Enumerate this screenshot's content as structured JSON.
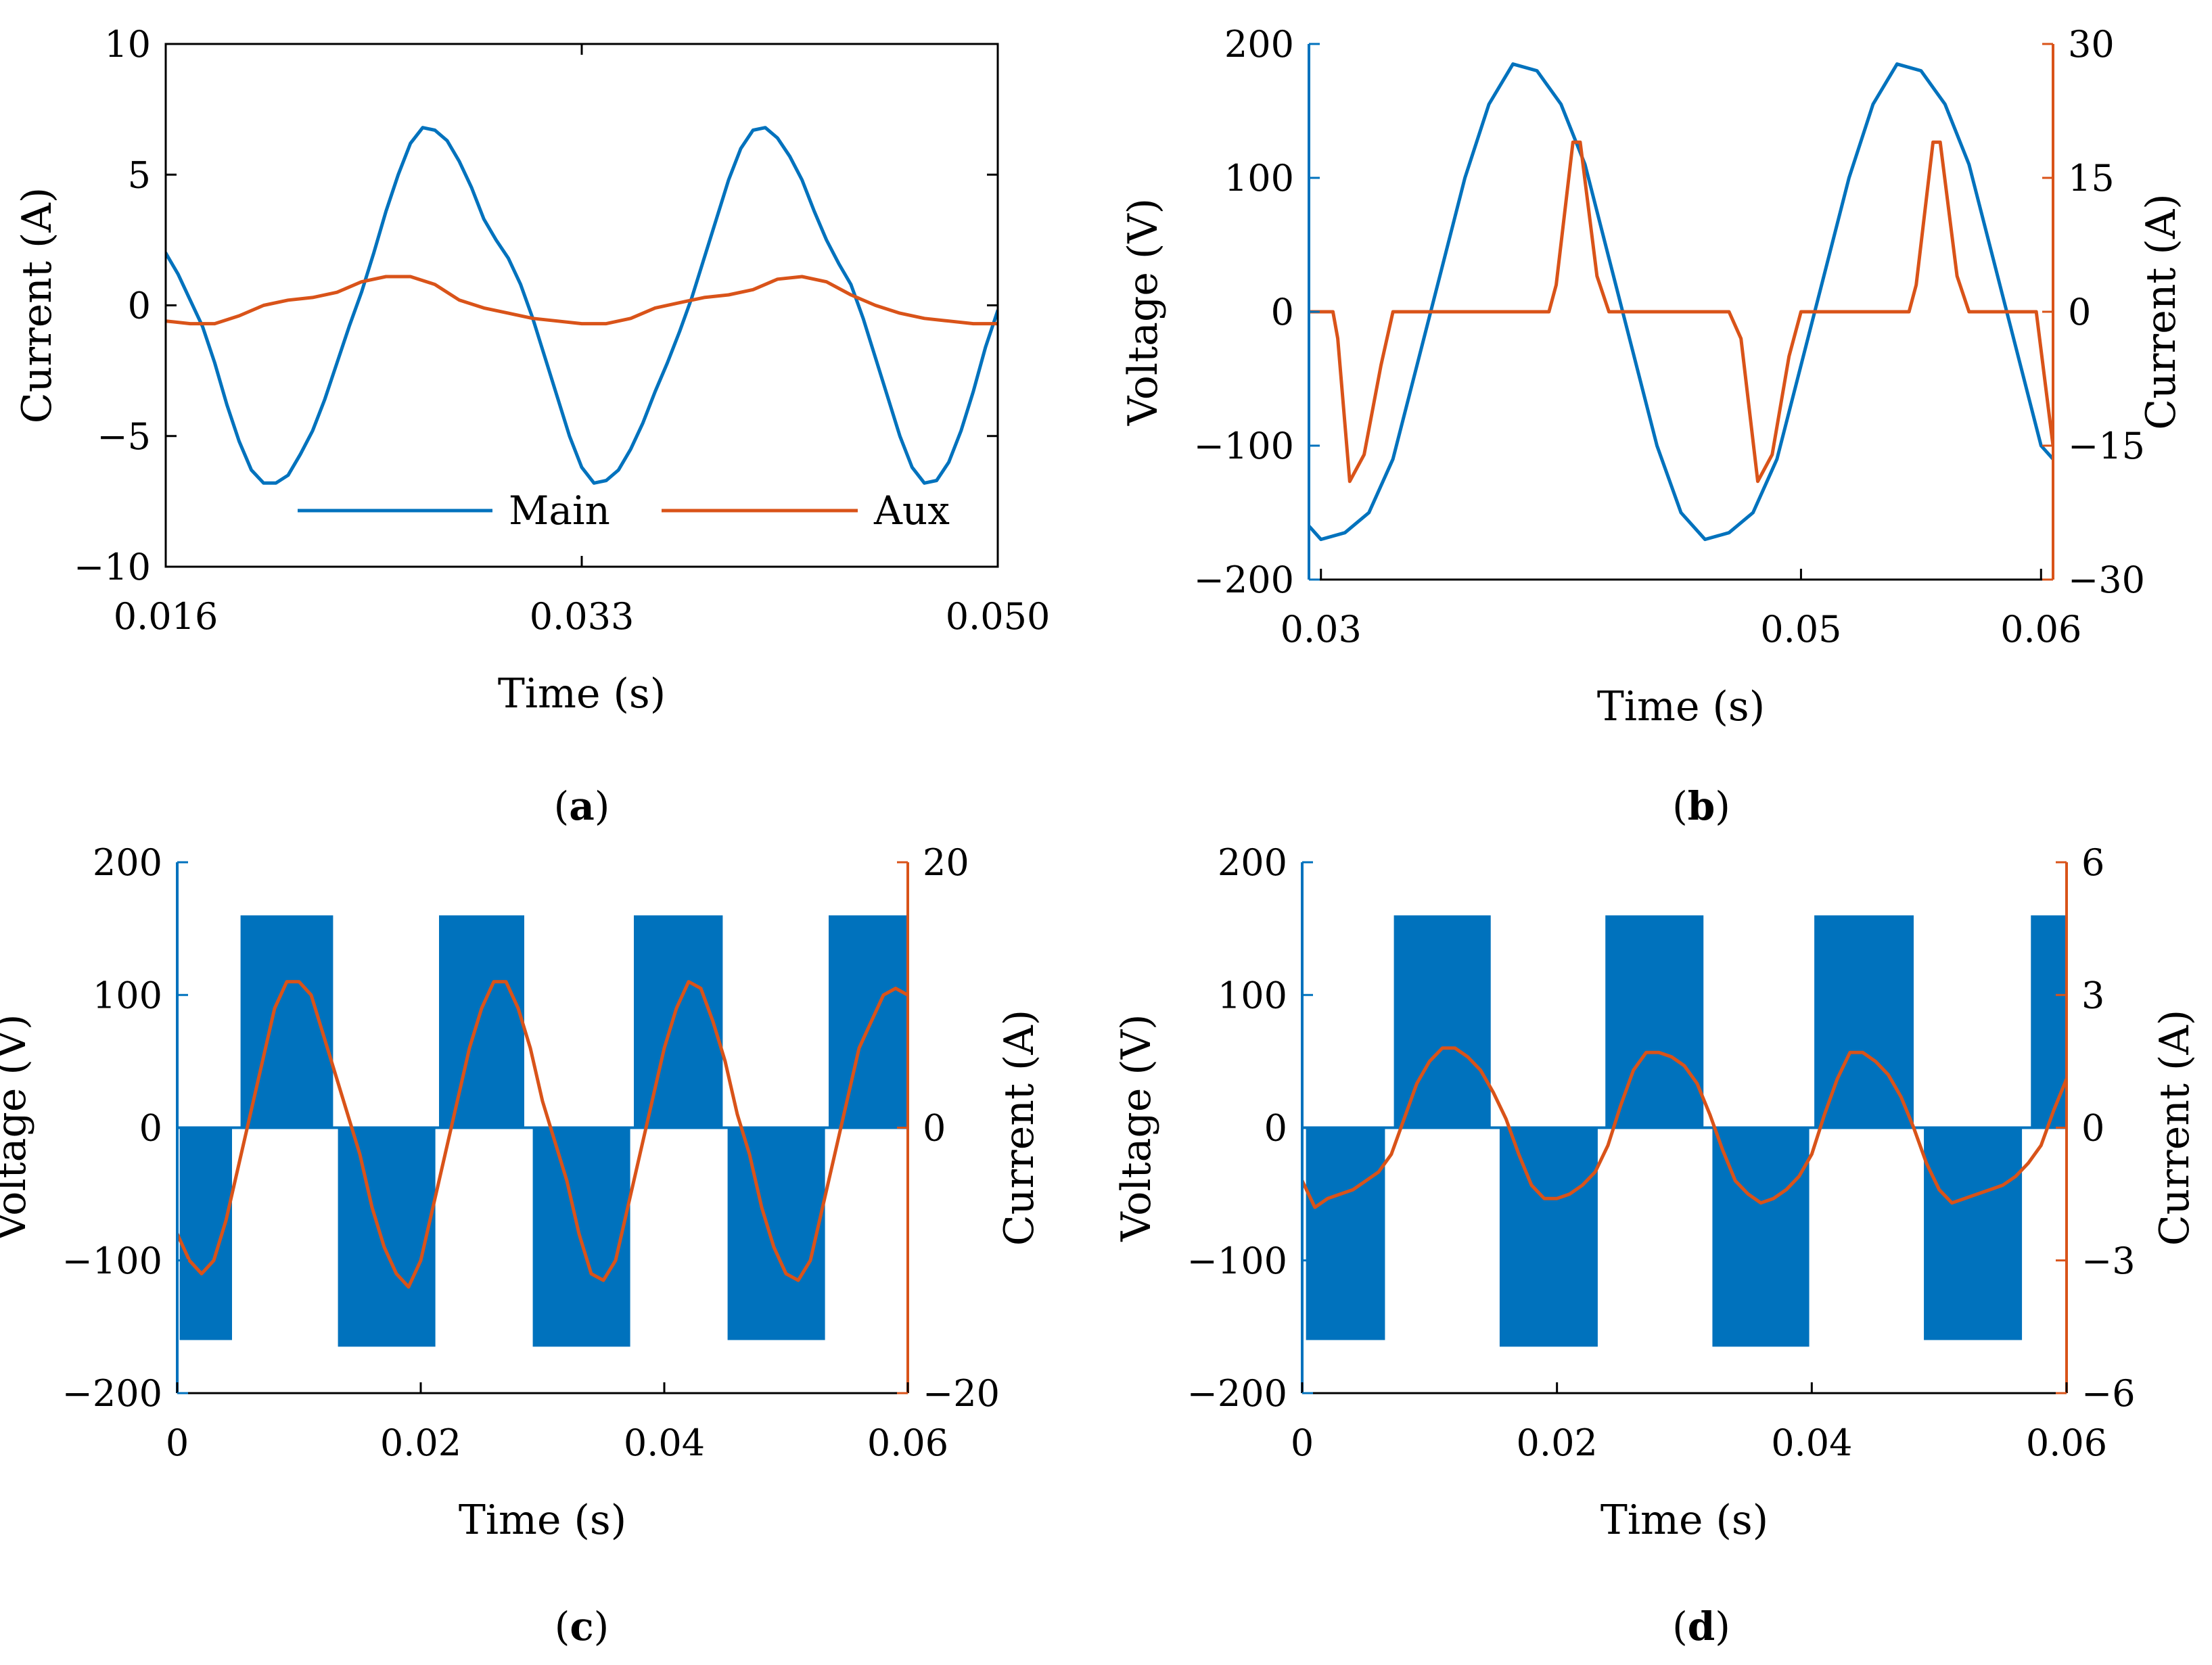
{
  "colors": {
    "blue": "#0072bd",
    "orange": "#d95319"
  },
  "chart_data": [
    {
      "panel": "a",
      "caption_letter": "a",
      "type": "line",
      "xlabel": "Time (s)",
      "ylabel": "Current (A)",
      "xlim": [
        0.016,
        0.05
      ],
      "ylim": [
        -10,
        10
      ],
      "xticks": [
        0.016,
        0.033,
        0.05
      ],
      "xtick_labels": [
        "0.016",
        "0.033",
        "0.050"
      ],
      "yticks": [
        -10,
        -5,
        0,
        5,
        10
      ],
      "ytick_labels": [
        "−10",
        "−5",
        "0",
        "5",
        "10"
      ],
      "legend_position": "bottom-right",
      "series": [
        {
          "name": "Main",
          "axis": "left",
          "x": [
            0.016,
            0.0165,
            0.017,
            0.0175,
            0.018,
            0.0185,
            0.019,
            0.0195,
            0.02,
            0.0205,
            0.021,
            0.0215,
            0.022,
            0.0225,
            0.023,
            0.0235,
            0.024,
            0.0245,
            0.025,
            0.0255,
            0.026,
            0.0265,
            0.027,
            0.0275,
            0.028,
            0.0285,
            0.029,
            0.0295,
            0.03,
            0.0305,
            0.031,
            0.0315,
            0.032,
            0.0325,
            0.033,
            0.0335,
            0.034,
            0.0345,
            0.035,
            0.0355,
            0.036,
            0.0365,
            0.037,
            0.0375,
            0.038,
            0.0385,
            0.039,
            0.0395,
            0.04,
            0.0405,
            0.041,
            0.0415,
            0.042,
            0.0425,
            0.043,
            0.0435,
            0.044,
            0.0445,
            0.045,
            0.0455,
            0.046,
            0.0465,
            0.047,
            0.0475,
            0.048,
            0.0485,
            0.049,
            0.0495,
            0.05
          ],
          "values": [
            2.0,
            1.2,
            0.2,
            -0.8,
            -2.2,
            -3.8,
            -5.2,
            -6.3,
            -6.8,
            -6.8,
            -6.5,
            -5.7,
            -4.8,
            -3.6,
            -2.2,
            -0.8,
            0.5,
            2.0,
            3.6,
            5.0,
            6.2,
            6.8,
            6.7,
            6.3,
            5.5,
            4.5,
            3.3,
            2.5,
            1.8,
            0.8,
            -0.5,
            -2.0,
            -3.5,
            -5.0,
            -6.2,
            -6.8,
            -6.7,
            -6.3,
            -5.5,
            -4.5,
            -3.3,
            -2.2,
            -1.0,
            0.3,
            1.8,
            3.3,
            4.8,
            6.0,
            6.7,
            6.8,
            6.4,
            5.7,
            4.8,
            3.6,
            2.5,
            1.6,
            0.8,
            -0.5,
            -2.0,
            -3.5,
            -5.0,
            -6.2,
            -6.8,
            -6.7,
            -6.0,
            -4.8,
            -3.3,
            -1.6,
            -0.2
          ]
        },
        {
          "name": "Aux",
          "axis": "left",
          "x": [
            0.016,
            0.017,
            0.018,
            0.019,
            0.02,
            0.021,
            0.022,
            0.023,
            0.024,
            0.025,
            0.026,
            0.027,
            0.028,
            0.029,
            0.03,
            0.031,
            0.032,
            0.033,
            0.034,
            0.035,
            0.036,
            0.037,
            0.038,
            0.039,
            0.04,
            0.041,
            0.042,
            0.043,
            0.044,
            0.045,
            0.046,
            0.047,
            0.048,
            0.049,
            0.05
          ],
          "values": [
            -0.6,
            -0.7,
            -0.7,
            -0.4,
            0.0,
            0.2,
            0.3,
            0.5,
            0.9,
            1.1,
            1.1,
            0.8,
            0.2,
            -0.1,
            -0.3,
            -0.5,
            -0.6,
            -0.7,
            -0.7,
            -0.5,
            -0.1,
            0.1,
            0.3,
            0.4,
            0.6,
            1.0,
            1.1,
            0.9,
            0.4,
            0.0,
            -0.3,
            -0.5,
            -0.6,
            -0.7,
            -0.7
          ]
        }
      ]
    },
    {
      "panel": "b",
      "caption_letter": "b",
      "type": "line",
      "xlabel": "Time (s)",
      "ylabel": "Voltage (V)",
      "y2label": "Current (A)",
      "xlim": [
        0.0295,
        0.0605
      ],
      "ylim": [
        -200,
        200
      ],
      "y2lim": [
        -30,
        30
      ],
      "xticks": [
        0.03,
        0.05,
        0.06
      ],
      "xtick_labels": [
        "0.03",
        "0.05",
        "0.06"
      ],
      "yticks": [
        -200,
        -100,
        0,
        100,
        200
      ],
      "ytick_labels": [
        "−200",
        "−100",
        "0",
        "100",
        "200"
      ],
      "y2ticks": [
        -30,
        -15,
        0,
        15,
        30
      ],
      "y2tick_labels": [
        "−30",
        "−15",
        "0",
        "15",
        "30"
      ],
      "series": [
        {
          "axis": "left",
          "x": [
            0.0295,
            0.03,
            0.031,
            0.032,
            0.033,
            0.034,
            0.035,
            0.036,
            0.037,
            0.038,
            0.039,
            0.04,
            0.041,
            0.042,
            0.043,
            0.044,
            0.045,
            0.046,
            0.047,
            0.048,
            0.049,
            0.05,
            0.051,
            0.052,
            0.053,
            0.054,
            0.055,
            0.056,
            0.057,
            0.058,
            0.059,
            0.06,
            0.0605
          ],
          "values": [
            -160,
            -170,
            -165,
            -150,
            -110,
            -40,
            30,
            100,
            155,
            185,
            180,
            155,
            110,
            40,
            -30,
            -100,
            -150,
            -170,
            -165,
            -150,
            -110,
            -40,
            30,
            100,
            155,
            185,
            180,
            155,
            110,
            40,
            -30,
            -100,
            -110
          ]
        },
        {
          "axis": "right",
          "x": [
            0.0295,
            0.0305,
            0.0307,
            0.0312,
            0.0318,
            0.0325,
            0.033,
            0.0335,
            0.034,
            0.036,
            0.038,
            0.0395,
            0.0398,
            0.0405,
            0.0408,
            0.0415,
            0.042,
            0.043,
            0.046,
            0.047,
            0.0475,
            0.0482,
            0.0488,
            0.0495,
            0.05,
            0.053,
            0.0545,
            0.0548,
            0.0555,
            0.0558,
            0.0565,
            0.057,
            0.058,
            0.0598,
            0.0605
          ],
          "values": [
            0,
            0,
            -3,
            -19,
            -16,
            -6,
            0,
            0,
            0,
            0,
            0,
            0,
            3,
            19,
            19,
            4,
            0,
            0,
            0,
            0,
            -3,
            -19,
            -16,
            -5,
            0,
            0,
            0,
            3,
            19,
            19,
            4,
            0,
            0,
            0,
            -15
          ]
        }
      ]
    },
    {
      "panel": "c",
      "caption_letter": "c",
      "type": "line",
      "xlabel": "Time (s)",
      "ylabel": "Voltage (V)",
      "y2label": "Current (A)",
      "xlim": [
        0,
        0.06
      ],
      "ylim": [
        -200,
        200
      ],
      "y2lim": [
        -20,
        20
      ],
      "xticks": [
        0,
        0.02,
        0.04,
        0.06
      ],
      "xtick_labels": [
        "0",
        "0.02",
        "0.04",
        "0.06"
      ],
      "yticks": [
        -200,
        -100,
        0,
        100,
        200
      ],
      "ytick_labels": [
        "−200",
        "−100",
        "0",
        "100",
        "200"
      ],
      "y2ticks": [
        -20,
        0,
        20
      ],
      "y2tick_labels": [
        "−20",
        "0",
        "20"
      ],
      "pwm_blocks": [
        {
          "x0": 0.0002,
          "x1": 0.0045,
          "level": -160
        },
        {
          "x0": 0.0052,
          "x1": 0.0128,
          "level": 160
        },
        {
          "x0": 0.0132,
          "x1": 0.0212,
          "level": -165
        },
        {
          "x0": 0.0215,
          "x1": 0.0285,
          "level": 160
        },
        {
          "x0": 0.0292,
          "x1": 0.0372,
          "level": -165
        },
        {
          "x0": 0.0375,
          "x1": 0.0448,
          "level": 160
        },
        {
          "x0": 0.0452,
          "x1": 0.0532,
          "level": -160
        },
        {
          "x0": 0.0535,
          "x1": 0.06,
          "level": 160
        }
      ],
      "series": [
        {
          "axis": "right",
          "x": [
            0,
            0.001,
            0.002,
            0.003,
            0.004,
            0.005,
            0.006,
            0.007,
            0.008,
            0.009,
            0.01,
            0.011,
            0.012,
            0.013,
            0.014,
            0.015,
            0.016,
            0.017,
            0.018,
            0.019,
            0.02,
            0.021,
            0.022,
            0.023,
            0.024,
            0.025,
            0.026,
            0.027,
            0.028,
            0.029,
            0.03,
            0.031,
            0.032,
            0.033,
            0.034,
            0.035,
            0.036,
            0.037,
            0.038,
            0.039,
            0.04,
            0.041,
            0.042,
            0.043,
            0.044,
            0.045,
            0.046,
            0.047,
            0.048,
            0.049,
            0.05,
            0.051,
            0.052,
            0.053,
            0.054,
            0.055,
            0.056,
            0.057,
            0.058,
            0.059,
            0.06
          ],
          "values": [
            -8,
            -10,
            -11,
            -10,
            -7,
            -3,
            1,
            5,
            9,
            11,
            11,
            10,
            7,
            4,
            1,
            -2,
            -6,
            -9,
            -11,
            -12,
            -10,
            -6,
            -2,
            2,
            6,
            9,
            11,
            11,
            9,
            6,
            2,
            -1,
            -4,
            -8,
            -11,
            -11.5,
            -10,
            -6,
            -2,
            2,
            6,
            9,
            11,
            10.5,
            8,
            5,
            1,
            -2,
            -6,
            -9,
            -11,
            -11.5,
            -10,
            -6,
            -2,
            2,
            6,
            8,
            10,
            10.5,
            10
          ]
        }
      ]
    },
    {
      "panel": "d",
      "caption_letter": "d",
      "type": "line",
      "xlabel": "Time (s)",
      "ylabel": "Voltage (V)",
      "y2label": "Current (A)",
      "xlim": [
        0,
        0.06
      ],
      "ylim": [
        -200,
        200
      ],
      "y2lim": [
        -6,
        6
      ],
      "xticks": [
        0,
        0.02,
        0.04,
        0.06
      ],
      "xtick_labels": [
        "0",
        "0.02",
        "0.04",
        "0.06"
      ],
      "yticks": [
        -200,
        -100,
        0,
        100,
        200
      ],
      "ytick_labels": [
        "−200",
        "−100",
        "0",
        "100",
        "200"
      ],
      "y2ticks": [
        -6,
        -3,
        0,
        3,
        6
      ],
      "y2tick_labels": [
        "−6",
        "−3",
        "0",
        "3",
        "6"
      ],
      "pwm_blocks": [
        {
          "x0": 0.0003,
          "x1": 0.0065,
          "level": -160
        },
        {
          "x0": 0.0072,
          "x1": 0.0148,
          "level": 160
        },
        {
          "x0": 0.0155,
          "x1": 0.0232,
          "level": -165
        },
        {
          "x0": 0.0238,
          "x1": 0.0315,
          "level": 160
        },
        {
          "x0": 0.0322,
          "x1": 0.0398,
          "level": -165
        },
        {
          "x0": 0.0402,
          "x1": 0.048,
          "level": 160
        },
        {
          "x0": 0.0488,
          "x1": 0.0565,
          "level": -160
        },
        {
          "x0": 0.0572,
          "x1": 0.06,
          "level": 160
        }
      ],
      "series": [
        {
          "axis": "right",
          "x": [
            0,
            0.001,
            0.002,
            0.003,
            0.004,
            0.005,
            0.006,
            0.007,
            0.008,
            0.009,
            0.01,
            0.011,
            0.012,
            0.013,
            0.014,
            0.015,
            0.016,
            0.017,
            0.018,
            0.019,
            0.02,
            0.021,
            0.022,
            0.023,
            0.024,
            0.025,
            0.026,
            0.027,
            0.028,
            0.029,
            0.03,
            0.031,
            0.032,
            0.033,
            0.034,
            0.035,
            0.036,
            0.037,
            0.038,
            0.039,
            0.04,
            0.041,
            0.042,
            0.043,
            0.044,
            0.045,
            0.046,
            0.047,
            0.048,
            0.049,
            0.05,
            0.051,
            0.052,
            0.053,
            0.054,
            0.055,
            0.056,
            0.057,
            0.058,
            0.059,
            0.06
          ],
          "values": [
            -1.2,
            -1.8,
            -1.6,
            -1.5,
            -1.4,
            -1.2,
            -1.0,
            -0.6,
            0.2,
            1.0,
            1.5,
            1.8,
            1.8,
            1.6,
            1.3,
            0.8,
            0.2,
            -0.6,
            -1.3,
            -1.6,
            -1.6,
            -1.5,
            -1.3,
            -1.0,
            -0.4,
            0.5,
            1.3,
            1.7,
            1.7,
            1.6,
            1.4,
            1.0,
            0.3,
            -0.5,
            -1.2,
            -1.5,
            -1.7,
            -1.6,
            -1.4,
            -1.1,
            -0.6,
            0.3,
            1.1,
            1.7,
            1.7,
            1.5,
            1.2,
            0.7,
            0.0,
            -0.8,
            -1.4,
            -1.7,
            -1.6,
            -1.5,
            -1.4,
            -1.3,
            -1.1,
            -0.8,
            -0.4,
            0.4,
            1.1
          ]
        }
      ]
    }
  ]
}
